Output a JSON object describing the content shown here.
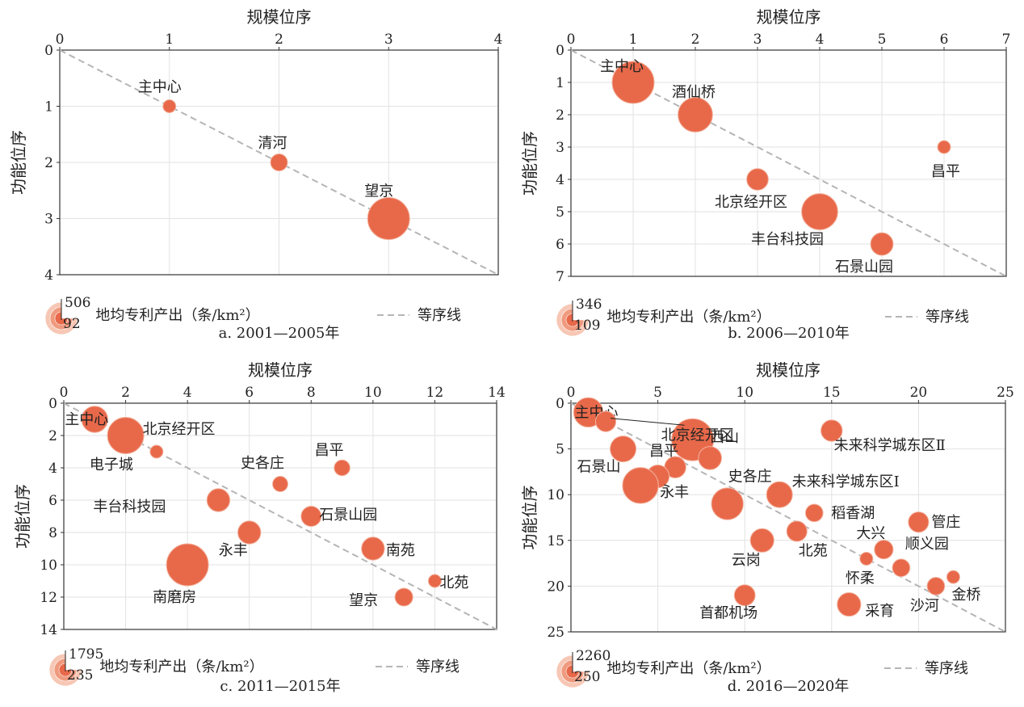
{
  "colors": {
    "bubble": "#e8694a",
    "bubble_stroke": "#f3b39f",
    "diagonal": "#b5b5b5",
    "grid": "#e2e2e2",
    "axis": "#333333"
  },
  "common": {
    "x_title": "规模位序",
    "y_title": "功能位序",
    "size_legend_title": "地均专利产出（条/km²）",
    "line_legend": "等序线"
  },
  "chart_data": [
    {
      "type": "scatter",
      "caption": "a. 2001—2005年",
      "xlim": [
        0,
        4
      ],
      "ylim": [
        0,
        4
      ],
      "xticks": [
        "0",
        "1",
        "2",
        "3",
        "4"
      ],
      "yticks": [
        "0",
        "1",
        "2",
        "3",
        "4"
      ],
      "size_legend": {
        "max": "506",
        "min": "92"
      },
      "points": [
        {
          "label": "主中心",
          "x": 1,
          "y": 1,
          "size": 92
        },
        {
          "label": "清河",
          "x": 2,
          "y": 2,
          "size": 100
        },
        {
          "label": "望京",
          "x": 3,
          "y": 3,
          "size": 506
        }
      ]
    },
    {
      "type": "scatter",
      "caption": "b. 2006—2010年",
      "xlim": [
        0,
        7
      ],
      "ylim": [
        0,
        7
      ],
      "xticks": [
        "0",
        "1",
        "2",
        "3",
        "4",
        "5",
        "6",
        "7"
      ],
      "yticks": [
        "0",
        "1",
        "2",
        "3",
        "4",
        "5",
        "6",
        "7"
      ],
      "size_legend": {
        "max": "346",
        "min": "109"
      },
      "points": [
        {
          "label": "主中心",
          "x": 1,
          "y": 1,
          "size": 346
        },
        {
          "label": "酒仙桥",
          "x": 2,
          "y": 2,
          "size": 240
        },
        {
          "label": "北京经开区",
          "x": 3,
          "y": 4,
          "size": 130
        },
        {
          "label": "丰台科技园",
          "x": 4,
          "y": 5,
          "size": 260
        },
        {
          "label": "石景山园",
          "x": 5,
          "y": 6,
          "size": 135
        },
        {
          "label": "昌平",
          "x": 6,
          "y": 3,
          "size": 109
        }
      ]
    },
    {
      "type": "scatter",
      "caption": "c. 2011—2015年",
      "xlim": [
        0,
        14
      ],
      "ylim": [
        0,
        14
      ],
      "xticks": [
        "0",
        "2",
        "4",
        "6",
        "8",
        "10",
        "12",
        "14"
      ],
      "yticks": [
        "0",
        "2",
        "4",
        "6",
        "8",
        "10",
        "12",
        "14"
      ],
      "size_legend": {
        "max": "1795",
        "min": "235"
      },
      "points": [
        {
          "label": "主中心",
          "x": 1,
          "y": 1,
          "size": 560
        },
        {
          "label": "北京经开区",
          "x": 2,
          "y": 2,
          "size": 1250
        },
        {
          "label": "电子城",
          "x": 3,
          "y": 3,
          "size": 235
        },
        {
          "label": "史各庄",
          "x": 7,
          "y": 5,
          "size": 245
        },
        {
          "label": "昌平",
          "x": 9,
          "y": 4,
          "size": 250
        },
        {
          "label": "丰台科技园",
          "x": 5,
          "y": 6,
          "size": 420
        },
        {
          "label": "石景山园",
          "x": 8,
          "y": 7,
          "size": 330
        },
        {
          "label": "永丰",
          "x": 6,
          "y": 8,
          "size": 420
        },
        {
          "label": "南苑",
          "x": 10,
          "y": 9,
          "size": 420
        },
        {
          "label": "南磨房",
          "x": 4,
          "y": 10,
          "size": 1795
        },
        {
          "label": "北苑",
          "x": 12,
          "y": 11,
          "size": 235
        },
        {
          "label": "望京",
          "x": 11,
          "y": 12,
          "size": 280
        }
      ]
    },
    {
      "type": "scatter",
      "caption": "d. 2016—2020年",
      "xlim": [
        0,
        25
      ],
      "ylim": [
        0,
        25
      ],
      "xticks": [
        "0",
        "5",
        "10",
        "15",
        "20",
        "25"
      ],
      "yticks": [
        "0",
        "5",
        "10",
        "15",
        "20",
        "25"
      ],
      "size_legend": {
        "max": "2260",
        "min": "250"
      },
      "points": [
        {
          "label": "主中心",
          "x": 1,
          "y": 1,
          "size": 900
        },
        {
          "label": "",
          "x": 2,
          "y": 2,
          "size": 380
        },
        {
          "label": "北京经开区",
          "x": 7,
          "y": 4,
          "size": 2260
        },
        {
          "label": "石景山",
          "x": 3,
          "y": 5,
          "size": 650
        },
        {
          "label": "西山",
          "x": 8,
          "y": 6,
          "size": 500
        },
        {
          "label": "昌平",
          "x": 6,
          "y": 7,
          "size": 420
        },
        {
          "label": "",
          "x": 5,
          "y": 8,
          "size": 480
        },
        {
          "label": "永丰",
          "x": 4,
          "y": 9,
          "size": 1500
        },
        {
          "label": "史各庄",
          "x": 9,
          "y": 11,
          "size": 1100
        },
        {
          "label": "未来科学城东区Ⅱ",
          "x": 15,
          "y": 3,
          "size": 420
        },
        {
          "label": "未来科学城东区Ⅰ",
          "x": 12,
          "y": 10,
          "size": 650
        },
        {
          "label": "稻香湖",
          "x": 14,
          "y": 12,
          "size": 300
        },
        {
          "label": "北苑",
          "x": 13,
          "y": 14,
          "size": 380
        },
        {
          "label": "云岗",
          "x": 11,
          "y": 15,
          "size": 520
        },
        {
          "label": "管庄",
          "x": 20,
          "y": 13,
          "size": 380
        },
        {
          "label": "大兴",
          "x": 18,
          "y": 16,
          "size": 330
        },
        {
          "label": "怀柔",
          "x": 17,
          "y": 17,
          "size": 250
        },
        {
          "label": "顺义园",
          "x": 19,
          "y": 18,
          "size": 300
        },
        {
          "label": "金桥",
          "x": 22,
          "y": 19,
          "size": 250
        },
        {
          "label": "沙河",
          "x": 21,
          "y": 20,
          "size": 300
        },
        {
          "label": "首都机场",
          "x": 10,
          "y": 21,
          "size": 400
        },
        {
          "label": "采育",
          "x": 16,
          "y": 22,
          "size": 520
        }
      ]
    }
  ]
}
